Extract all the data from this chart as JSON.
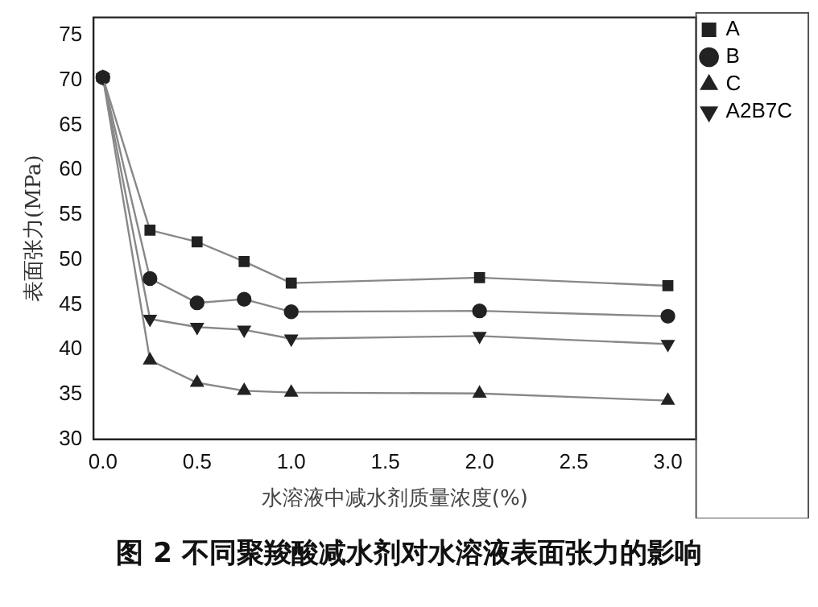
{
  "chart_data": {
    "type": "line",
    "xlabel": "水溶液中减水剂质量浓度(%)",
    "ylabel": "表面张力(MPa)",
    "annotations": [
      "图 2  不同聚羧酸减水剂对水溶液表面张力的影响"
    ],
    "x": [
      0,
      0.25,
      0.5,
      0.75,
      1.0,
      2.0,
      3.0
    ],
    "xlim": [
      -0.05,
      3.15
    ],
    "xticks": [
      {
        "value": 0,
        "label": "0.0"
      },
      0.5,
      {
        "value": 1,
        "label": "1.0"
      },
      1.5,
      {
        "value": 2,
        "label": "2.0"
      },
      2.5,
      {
        "value": 3,
        "label": "3.0"
      }
    ],
    "ylim": [
      30,
      77
    ],
    "yticks": [
      30,
      35,
      40,
      45,
      50,
      55,
      60,
      65,
      70,
      75
    ],
    "grid": false,
    "legend": "top right",
    "line_style": "solid",
    "series": [
      {
        "name": "A",
        "color": "#222222",
        "marker": "square",
        "values": [
          70.3,
          53.3,
          52.0,
          49.8,
          47.4,
          48.0,
          47.1
        ]
      },
      {
        "name": "B",
        "color": "#222222",
        "marker": "circle",
        "values": [
          70.3,
          47.9,
          45.2,
          45.6,
          44.2,
          44.3,
          43.7
        ]
      },
      {
        "name": "C",
        "color": "#222222",
        "marker": "triangle",
        "values": [
          70.3,
          38.8,
          36.3,
          35.4,
          35.2,
          35.1,
          34.3
        ]
      },
      {
        "name": "A2B7C",
        "color": "#222222",
        "marker": "triangle-down",
        "values": [
          70.3,
          43.4,
          42.5,
          42.2,
          41.2,
          41.5,
          40.6
        ]
      }
    ]
  }
}
